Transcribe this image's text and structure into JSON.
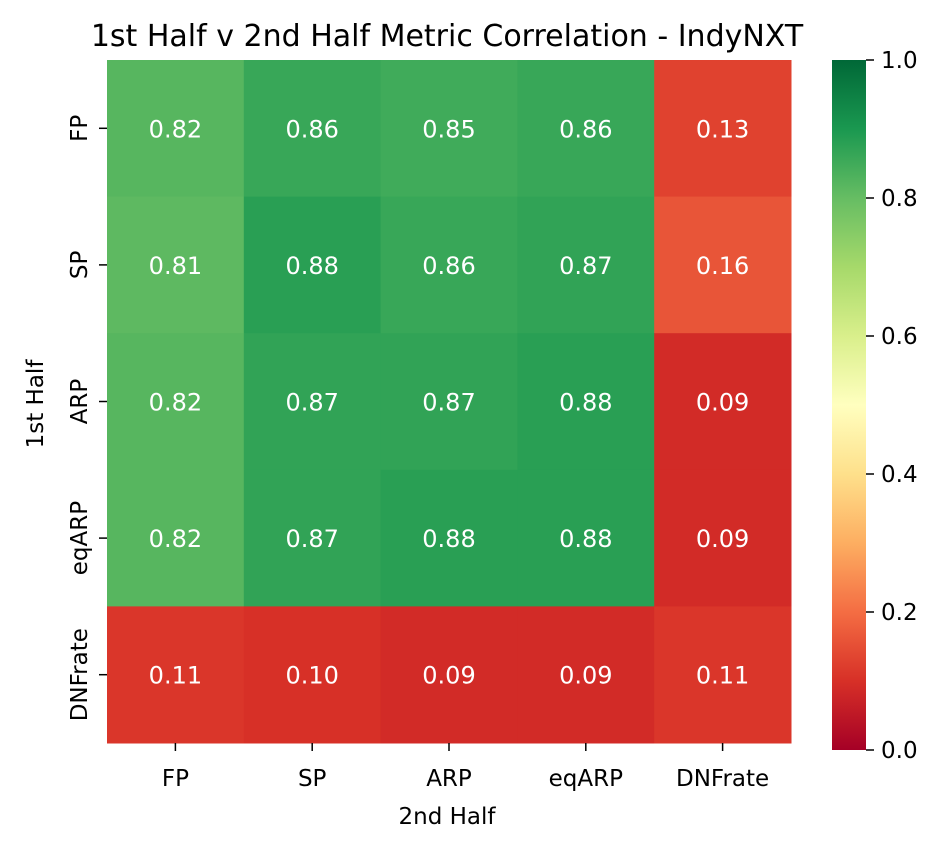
{
  "chart_data": {
    "type": "heatmap",
    "title": "1st Half v 2nd Half Metric Correlation - IndyNXT",
    "xlabel": "2nd Half",
    "ylabel": "1st Half",
    "x_categories": [
      "FP",
      "SP",
      "ARP",
      "eqARP",
      "DNFrate"
    ],
    "y_categories": [
      "FP",
      "SP",
      "ARP",
      "eqARP",
      "DNFrate"
    ],
    "values": [
      [
        0.82,
        0.86,
        0.85,
        0.86,
        0.13
      ],
      [
        0.81,
        0.88,
        0.86,
        0.87,
        0.16
      ],
      [
        0.82,
        0.87,
        0.87,
        0.88,
        0.09
      ],
      [
        0.82,
        0.87,
        0.88,
        0.88,
        0.09
      ],
      [
        0.11,
        0.1,
        0.09,
        0.09,
        0.11
      ]
    ],
    "annotation_format": "0.00",
    "colormap": "RdYlGn",
    "colorbar": {
      "min": 0.0,
      "max": 1.0,
      "ticks": [
        0.0,
        0.2,
        0.4,
        0.6,
        0.8,
        1.0
      ],
      "tick_labels": [
        "0.0",
        "0.2",
        "0.4",
        "0.6",
        "0.8",
        "1.0"
      ]
    },
    "annotation_color": "#ffffff"
  }
}
